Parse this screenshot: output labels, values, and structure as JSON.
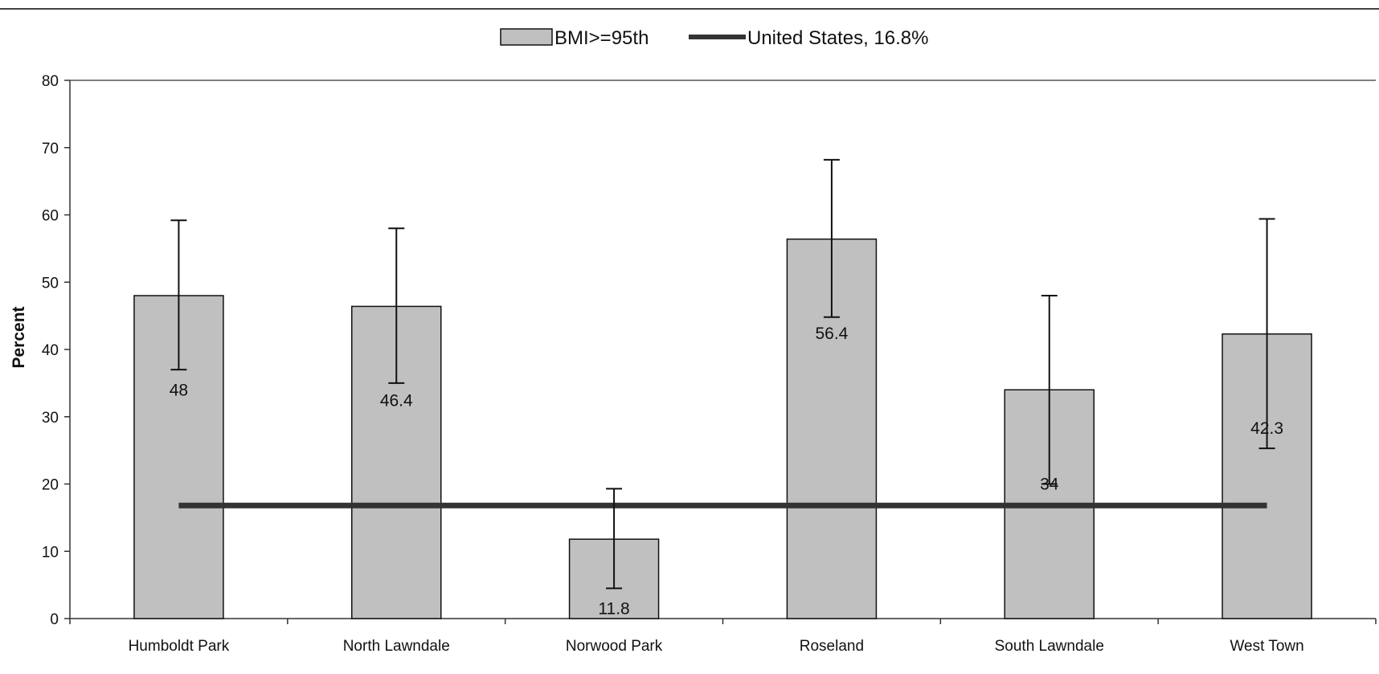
{
  "chart_data": {
    "type": "bar",
    "categories": [
      "Humboldt Park",
      "North Lawndale",
      "Norwood Park",
      "Roseland",
      "South Lawndale",
      "West Town"
    ],
    "series": [
      {
        "name": "BMI>=95th",
        "values": [
          48,
          46.4,
          11.8,
          56.4,
          34,
          42.3
        ],
        "value_labels": [
          "48",
          "46.4",
          "11.8",
          "56.4",
          "34",
          "42.3"
        ],
        "error_low": [
          37,
          35,
          4.5,
          44.8,
          20,
          25.3
        ],
        "error_high": [
          59.2,
          58,
          19.3,
          68.2,
          48,
          59.4
        ],
        "color": "#c0c0c0"
      }
    ],
    "reference_line": {
      "name": "United States, 16.8%",
      "value": 16.8,
      "color": "#333333"
    },
    "ylabel": "Percent",
    "xlabel": "",
    "title": "",
    "ylim": [
      0,
      80
    ],
    "yticks": [
      "0",
      "10",
      "20",
      "30",
      "40",
      "50",
      "60",
      "70",
      "80"
    ],
    "grid": false,
    "legend_position": "top-center"
  }
}
